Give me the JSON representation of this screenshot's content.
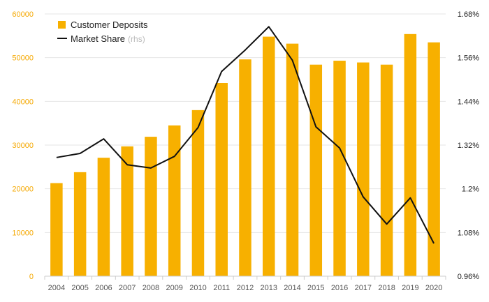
{
  "chart_data": {
    "type": "bar+line",
    "categories": [
      "2004",
      "2005",
      "2006",
      "2007",
      "2008",
      "2009",
      "2010",
      "2011",
      "2012",
      "2013",
      "2014",
      "2015",
      "2016",
      "2017",
      "2018",
      "2019",
      "2020"
    ],
    "series": [
      {
        "name": "Customer Deposits",
        "type": "bar",
        "axis": "left",
        "color": "#f7b000",
        "values": [
          21300,
          23800,
          27100,
          29700,
          31900,
          34500,
          38000,
          44200,
          49600,
          54800,
          53200,
          48400,
          49300,
          48900,
          48400,
          55400,
          53500
        ]
      },
      {
        "name": "Market Share",
        "name_suffix": "(rhs)",
        "type": "line",
        "axis": "right",
        "color": "#111111",
        "values": [
          1.286,
          1.297,
          1.337,
          1.266,
          1.257,
          1.289,
          1.368,
          1.522,
          1.581,
          1.645,
          1.553,
          1.37,
          1.312,
          1.178,
          1.103,
          1.175,
          1.05
        ]
      }
    ],
    "left_axis": {
      "ylim": [
        0,
        60000
      ],
      "ticks": [
        0,
        10000,
        20000,
        30000,
        40000,
        50000,
        60000
      ],
      "tick_labels": [
        "0",
        "10000",
        "20000",
        "30000",
        "40000",
        "50000",
        "60000"
      ]
    },
    "right_axis": {
      "ylim": [
        0.96,
        1.68
      ],
      "ticks": [
        0.96,
        1.08,
        1.2,
        1.32,
        1.44,
        1.56,
        1.68
      ],
      "tick_labels": [
        "0.96%",
        "1.08%",
        "1.2%",
        "1.32%",
        "1.44%",
        "1.56%",
        "1.68%"
      ]
    },
    "title": "",
    "xlabel": "",
    "ylabel": "",
    "grid": true,
    "legend": {
      "position": "top-left"
    }
  }
}
